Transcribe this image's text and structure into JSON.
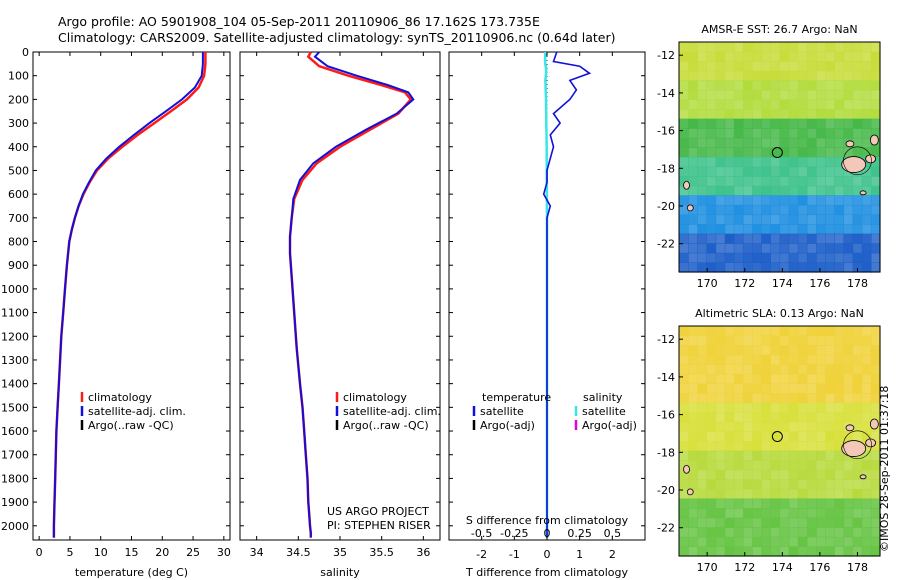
{
  "header": {
    "title_line1": "Argo profile: AO 5901908_104 05-Sep-2011 20110906_86 17.162S 173.735E",
    "title_line2": "Climatology: CARS2009. Satellite-adjusted climatology: synTS_20110906.nc (0.64d later)"
  },
  "credit": "©IMOS 28-Sep-2011 01:37:18",
  "colors": {
    "climatology": "#ff1a1a",
    "satellite": "#1010d8",
    "argo": "#000000",
    "salinity_satellite": "#38e6ea",
    "salinity_argo": "#e000e0"
  },
  "chart_data": [
    {
      "id": "temperature",
      "type": "line",
      "xlabel": "temperature (deg C)",
      "ylabel": "",
      "xlim": [
        -1,
        31
      ],
      "ylim": [
        2060,
        0
      ],
      "xticks": [
        0,
        5,
        10,
        15,
        20,
        25,
        30
      ],
      "yticks": [
        0,
        100,
        200,
        300,
        400,
        500,
        600,
        700,
        800,
        900,
        1000,
        1100,
        1200,
        1300,
        1400,
        1500,
        1600,
        1700,
        1800,
        1900,
        2000
      ],
      "legend": [
        "climatology",
        "satellite-adj. clim.",
        "Argo(..raw -QC)"
      ],
      "legend_position": "bottom-left",
      "series": [
        {
          "name": "climatology",
          "x": [
            27.0,
            27.0,
            26.8,
            25.9,
            24.0,
            21.4,
            18.7,
            16.0,
            13.5,
            11.2,
            9.4,
            8.2,
            7.2,
            6.4,
            5.8,
            5.3,
            4.9,
            4.5,
            4.2,
            3.9,
            3.6,
            3.4,
            3.2,
            3.0,
            2.8,
            2.7,
            2.6,
            2.5,
            2.4,
            2.4
          ],
          "y": [
            0,
            50,
            100,
            150,
            200,
            250,
            300,
            350,
            400,
            450,
            500,
            550,
            600,
            650,
            700,
            750,
            800,
            900,
            1000,
            1100,
            1200,
            1300,
            1400,
            1500,
            1600,
            1700,
            1800,
            1900,
            2000,
            2050
          ]
        },
        {
          "name": "satellite-adj. clim.",
          "x": [
            26.6,
            26.6,
            26.4,
            25.3,
            23.2,
            20.6,
            17.9,
            15.4,
            13.0,
            10.9,
            9.2,
            8.1,
            7.1,
            6.4,
            5.8,
            5.3,
            4.9,
            4.5,
            4.2,
            3.9,
            3.6,
            3.4,
            3.2,
            3.0,
            2.8,
            2.7,
            2.6,
            2.5,
            2.4,
            2.4
          ],
          "y": [
            0,
            50,
            100,
            150,
            200,
            250,
            300,
            350,
            400,
            450,
            500,
            550,
            600,
            650,
            700,
            750,
            800,
            900,
            1000,
            1100,
            1200,
            1300,
            1400,
            1500,
            1600,
            1700,
            1800,
            1900,
            2000,
            2050
          ]
        }
      ]
    },
    {
      "id": "salinity",
      "type": "line",
      "xlabel": "salinity",
      "ylabel": "",
      "xlim": [
        33.8,
        36.2
      ],
      "ylim": [
        2060,
        0
      ],
      "xticks": [
        34,
        34.5,
        35,
        35.5,
        36
      ],
      "xticklabels": [
        "34",
        "34.5",
        "35",
        "35.5",
        "36"
      ],
      "legend": [
        "climatology",
        "satellite-adj. clim.",
        "Argo(..raw -QC)"
      ],
      "legend_position": "bottom",
      "annotation": [
        "US ARGO PROJECT",
        "PI: STEPHEN RISER"
      ],
      "series": [
        {
          "name": "climatology",
          "x": [
            34.65,
            34.62,
            34.75,
            35.1,
            35.5,
            35.78,
            35.85,
            35.7,
            35.35,
            35.0,
            34.72,
            34.55,
            34.45,
            34.42,
            34.4,
            34.4,
            34.42,
            34.45,
            34.48,
            34.52,
            34.55,
            34.57,
            34.59,
            34.61,
            34.62,
            34.63,
            34.64,
            34.65,
            34.65
          ],
          "y": [
            0,
            20,
            60,
            100,
            140,
            170,
            200,
            260,
            330,
            400,
            470,
            540,
            620,
            700,
            780,
            850,
            950,
            1100,
            1250,
            1400,
            1500,
            1600,
            1700,
            1800,
            1900,
            1950,
            2000,
            2030,
            2050
          ]
        },
        {
          "name": "satellite-adj. clim.",
          "x": [
            34.75,
            34.7,
            34.85,
            35.2,
            35.58,
            35.82,
            35.88,
            35.68,
            35.3,
            34.95,
            34.68,
            34.52,
            34.44,
            34.42,
            34.4,
            34.4,
            34.42,
            34.45,
            34.48,
            34.52,
            34.55,
            34.57,
            34.59,
            34.61,
            34.62,
            34.63,
            34.64,
            34.65,
            34.65
          ],
          "y": [
            0,
            20,
            60,
            100,
            140,
            170,
            200,
            260,
            330,
            400,
            470,
            540,
            620,
            700,
            780,
            850,
            950,
            1100,
            1250,
            1400,
            1500,
            1600,
            1700,
            1800,
            1900,
            1950,
            2000,
            2030,
            2050
          ]
        }
      ]
    },
    {
      "id": "difference",
      "type": "line",
      "xlabel": "T difference from climatology",
      "xlabel2": "S difference from climatology",
      "xlim": [
        -3,
        3
      ],
      "ylim": [
        2060,
        0
      ],
      "xticks": [
        -2,
        -1,
        0,
        1,
        2
      ],
      "xticks_s": [
        -0.5,
        -0.25,
        0,
        0.25,
        0.5
      ],
      "xticks_s_labels": [
        "-0.5",
        "-0.25",
        "0",
        "0.25",
        "0.5"
      ],
      "legend_temperature": {
        "title": "temperature",
        "items": [
          "satellite",
          "Argo(-adj)"
        ]
      },
      "legend_salinity": {
        "title": "salinity",
        "items": [
          "satellite",
          "Argo(-adj)"
        ]
      },
      "series": [
        {
          "name": "temperature satellite",
          "x": [
            0.3,
            0.2,
            1.0,
            1.3,
            0.7,
            0.9,
            0.7,
            0.2,
            0.4,
            0.1,
            0.2,
            0.0,
            0.0,
            -0.1,
            0.1,
            0.0,
            0.0,
            0.0,
            0.0,
            0.0,
            0.0,
            0.0
          ],
          "y": [
            0,
            40,
            60,
            90,
            120,
            160,
            200,
            260,
            300,
            350,
            400,
            500,
            550,
            600,
            650,
            700,
            800,
            1000,
            1200,
            1500,
            1800,
            2050
          ]
        },
        {
          "name": "salinity satellite",
          "x": [
            -0.05,
            -0.06,
            -0.02,
            -0.05,
            -0.04,
            -0.03,
            -0.02,
            -0.01,
            -0.01,
            0.0,
            0.0,
            0.0,
            0.0
          ],
          "y": [
            0,
            40,
            80,
            120,
            160,
            200,
            300,
            400,
            500,
            700,
            1000,
            1500,
            2050
          ]
        }
      ]
    },
    {
      "id": "sst_map",
      "type": "heatmap",
      "title": "AMSR-E SST: 26.7 Argo: NaN",
      "xlim": [
        168.5,
        179.2
      ],
      "ylim": [
        -23.5,
        -11.3
      ],
      "xticks": [
        170,
        172,
        174,
        176,
        178
      ],
      "yticks": [
        -12,
        -14,
        -16,
        -18,
        -20,
        -22
      ],
      "marker": {
        "lon": 173.735,
        "lat": -17.162
      },
      "bands": [
        {
          "lat_min": -13.5,
          "lat_max": -11.3,
          "color": "#c8dc3a"
        },
        {
          "lat_min": -15.5,
          "lat_max": -13.5,
          "color": "#b2dc3e"
        },
        {
          "lat_min": -17.5,
          "lat_max": -15.5,
          "color": "#46b848"
        },
        {
          "lat_min": -19.5,
          "lat_max": -17.5,
          "color": "#3fc28c"
        },
        {
          "lat_min": -21.5,
          "lat_max": -19.5,
          "color": "#1f8fe0"
        },
        {
          "lat_min": -23.5,
          "lat_max": -21.5,
          "color": "#1e5fc8"
        }
      ]
    },
    {
      "id": "sla_map",
      "type": "heatmap",
      "title": "Altimetric SLA: 0.13 Argo: NaN",
      "xlim": [
        168.5,
        179.2
      ],
      "ylim": [
        -23.5,
        -11.3
      ],
      "xticks": [
        170,
        172,
        174,
        176,
        178
      ],
      "yticks": [
        -12,
        -14,
        -16,
        -18,
        -20,
        -22
      ],
      "marker": {
        "lon": 173.735,
        "lat": -17.162
      },
      "bands": [
        {
          "lat_min": -15.5,
          "lat_max": -11.3,
          "color": "#f0d23a"
        },
        {
          "lat_min": -18.0,
          "lat_max": -15.5,
          "color": "#d8e03c"
        },
        {
          "lat_min": -20.5,
          "lat_max": -18.0,
          "color": "#b8da3e"
        },
        {
          "lat_min": -23.5,
          "lat_max": -20.5,
          "color": "#66c444"
        }
      ]
    }
  ]
}
